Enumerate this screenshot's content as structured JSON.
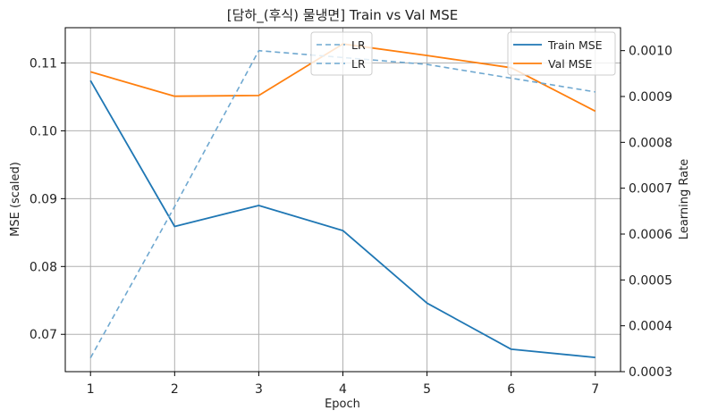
{
  "chart_data": {
    "type": "line",
    "title": "[담하_(후식) 물냉면] Train vs Val MSE",
    "xlabel": "Epoch",
    "ylabel": "MSE (scaled)",
    "y2label": "Learning Rate",
    "x": [
      1,
      2,
      3,
      4,
      5,
      6,
      7
    ],
    "xticks": [
      "1",
      "2",
      "3",
      "4",
      "5",
      "6",
      "7"
    ],
    "xlim": [
      0.7,
      7.3
    ],
    "ylim": [
      0.0645,
      0.1152
    ],
    "yticks": [
      0.07,
      0.08,
      0.09,
      0.1,
      0.11
    ],
    "ytick_labels": [
      "0.07",
      "0.08",
      "0.09",
      "0.10",
      "0.11"
    ],
    "y2lim": [
      0.0003,
      0.00105
    ],
    "y2ticks": [
      0.0003,
      0.0004,
      0.0005,
      0.0006,
      0.0007,
      0.0008,
      0.0009,
      0.001
    ],
    "y2tick_labels": [
      "0.0003",
      "0.0004",
      "0.0005",
      "0.0006",
      "0.0007",
      "0.0008",
      "0.0009",
      "0.0010"
    ],
    "grid": true,
    "series": [
      {
        "name": "Train MSE",
        "axis": "left",
        "color": "#1f77b4",
        "style": "solid",
        "values": [
          0.1074,
          0.0859,
          0.089,
          0.0853,
          0.0746,
          0.0678,
          0.0666
        ]
      },
      {
        "name": "Val MSE",
        "axis": "left",
        "color": "#ff7f0e",
        "style": "solid",
        "values": [
          0.1087,
          0.1051,
          0.1052,
          0.1128,
          0.1111,
          0.1093,
          0.1029
        ]
      },
      {
        "name": "LR",
        "axis": "right",
        "color": "#6fa8d0",
        "style": "dashed",
        "values": [
          0.00033,
          0.00066,
          0.001,
          0.000985,
          0.00097,
          0.00094,
          0.00091
        ]
      }
    ],
    "legends": [
      {
        "placement": "top-center",
        "entries": [
          "LR",
          "LR"
        ],
        "color": "#6fa8d0",
        "style": "dashed"
      },
      {
        "placement": "top-right",
        "entries": [
          "Train MSE",
          "Val MSE"
        ]
      }
    ]
  }
}
